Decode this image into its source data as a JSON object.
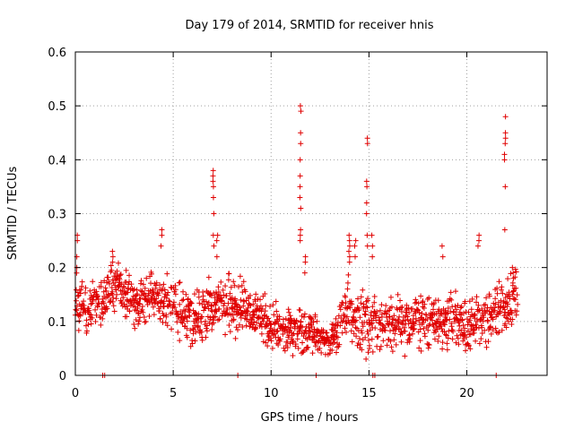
{
  "chart_data": {
    "type": "scatter",
    "title": "Day 179 of 2014, SRMTID for receiver hnis",
    "xlabel": "GPS time / hours",
    "ylabel": "SRMTID / TECUs",
    "xlim": [
      0,
      24.1
    ],
    "ylim": [
      0,
      0.6
    ],
    "xticks": [
      0,
      5,
      10,
      15,
      20
    ],
    "yticks": [
      0,
      0.1,
      0.2,
      0.3,
      0.4,
      0.5,
      0.6
    ],
    "xtick_labels": [
      "0",
      "5",
      "10",
      "15",
      "20"
    ],
    "ytick_labels": [
      "0",
      "0.1",
      "0.2",
      "0.3",
      "0.4",
      "0.5",
      "0.6"
    ],
    "grid": true,
    "legend": "none",
    "marker": "plus",
    "color": "#e00000",
    "series_note": "dense scatter of SRMTID values vs time",
    "envelope": [
      {
        "t": 0.0,
        "base": 0.14,
        "spread": 0.05
      },
      {
        "t": 0.5,
        "base": 0.12,
        "spread": 0.05
      },
      {
        "t": 1.5,
        "base": 0.14,
        "spread": 0.04
      },
      {
        "t": 2.0,
        "base": 0.17,
        "spread": 0.05
      },
      {
        "t": 3.0,
        "base": 0.13,
        "spread": 0.05
      },
      {
        "t": 4.0,
        "base": 0.15,
        "spread": 0.05
      },
      {
        "t": 5.0,
        "base": 0.13,
        "spread": 0.05
      },
      {
        "t": 6.0,
        "base": 0.1,
        "spread": 0.05
      },
      {
        "t": 7.5,
        "base": 0.13,
        "spread": 0.06
      },
      {
        "t": 9.0,
        "base": 0.12,
        "spread": 0.05
      },
      {
        "t": 10.5,
        "base": 0.08,
        "spread": 0.04
      },
      {
        "t": 12.0,
        "base": 0.08,
        "spread": 0.04
      },
      {
        "t": 13.0,
        "base": 0.06,
        "spread": 0.03
      },
      {
        "t": 14.0,
        "base": 0.12,
        "spread": 0.06
      },
      {
        "t": 15.0,
        "base": 0.09,
        "spread": 0.05
      },
      {
        "t": 16.5,
        "base": 0.1,
        "spread": 0.05
      },
      {
        "t": 18.5,
        "base": 0.1,
        "spread": 0.05
      },
      {
        "t": 20.0,
        "base": 0.09,
        "spread": 0.05
      },
      {
        "t": 21.5,
        "base": 0.12,
        "spread": 0.05
      },
      {
        "t": 22.5,
        "base": 0.15,
        "spread": 0.05
      }
    ],
    "spikes": [
      {
        "t": 0.1,
        "values": [
          0.26,
          0.25,
          0.22,
          0.2
        ]
      },
      {
        "t": 1.9,
        "values": [
          0.23,
          0.22,
          0.21
        ]
      },
      {
        "t": 4.4,
        "values": [
          0.27,
          0.26,
          0.24
        ]
      },
      {
        "t": 7.05,
        "values": [
          0.38,
          0.37,
          0.36,
          0.35,
          0.33,
          0.3,
          0.26,
          0.24
        ]
      },
      {
        "t": 7.25,
        "values": [
          0.26,
          0.25,
          0.22
        ]
      },
      {
        "t": 11.5,
        "values": [
          0.5,
          0.49,
          0.45,
          0.43,
          0.4,
          0.37,
          0.35,
          0.33,
          0.31,
          0.27,
          0.26,
          0.25
        ]
      },
      {
        "t": 11.75,
        "values": [
          0.22,
          0.21,
          0.19
        ]
      },
      {
        "t": 14.0,
        "values": [
          0.26,
          0.25,
          0.24,
          0.23,
          0.22,
          0.21
        ]
      },
      {
        "t": 14.3,
        "values": [
          0.25,
          0.24,
          0.22
        ]
      },
      {
        "t": 14.9,
        "values": [
          0.44,
          0.43,
          0.36,
          0.35,
          0.32,
          0.3,
          0.26,
          0.24
        ]
      },
      {
        "t": 15.15,
        "values": [
          0.26,
          0.24,
          0.22
        ]
      },
      {
        "t": 18.75,
        "values": [
          0.24,
          0.22
        ]
      },
      {
        "t": 20.6,
        "values": [
          0.26,
          0.25,
          0.24
        ]
      },
      {
        "t": 21.95,
        "values": [
          0.48,
          0.45,
          0.44,
          0.43,
          0.41,
          0.4,
          0.35,
          0.27
        ]
      },
      {
        "t": 22.35,
        "values": [
          0.2,
          0.19,
          0.18
        ]
      }
    ],
    "zero_points": [
      1.4,
      1.5,
      8.3,
      12.3,
      15.2,
      15.3,
      21.5
    ]
  }
}
